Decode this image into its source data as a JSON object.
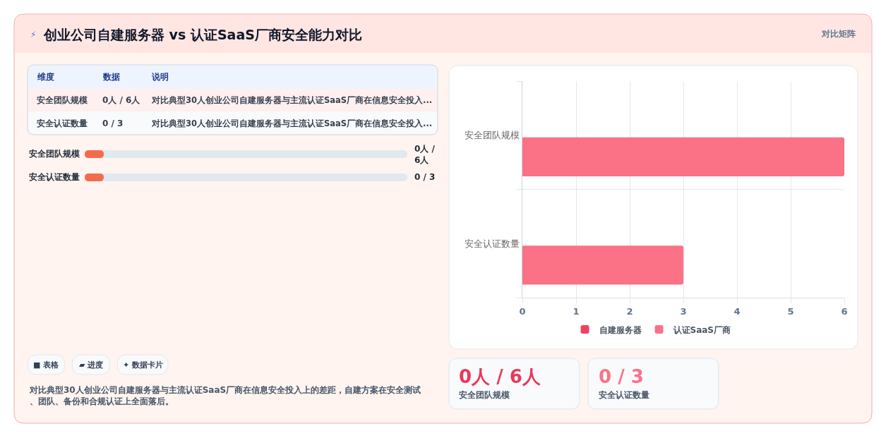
{
  "chart_data": {
    "type": "bar",
    "orientation": "horizontal",
    "title": "创业公司自建服务器 vs 认证SaaS厂商安全能力对比",
    "categories": [
      "安全团队规模",
      "安全认证数量"
    ],
    "series": [
      {
        "name": "自建服务器",
        "color": "#f43f5e",
        "values": [
          0,
          0
        ]
      },
      {
        "name": "认证SaaS厂商",
        "color": "#fb7185",
        "values": [
          6,
          3
        ]
      }
    ],
    "xlim": [
      0,
      6
    ],
    "xticks": [
      0,
      1,
      2,
      3,
      4,
      5,
      6
    ],
    "grid": true,
    "legend": "bottom",
    "annotations": [
      "⚡",
      "对比矩阵",
      "维度",
      "数据",
      "说明",
      "安全团队规模",
      "0人 / 6人",
      "对比典型30人创业公司自建服务器与主流认证SaaS厂商在信息安全投入...",
      "安全认证数量",
      "0 / 3",
      "对比典型30人创业公司自建服务器与主流认证SaaS厂商在信息安全投入...",
      "安全团队规模",
      "0人 / 6人",
      "安全认证数量",
      "0 / 3",
      "■ 表格",
      "▰ 进度",
      "✦ 数据卡片",
      "对比典型30人创业公司自建服务器与主流认证SaaS厂商在信息安全投入上的差距，自建方案在安全测试、团队、备份和合规认证上全面落后。",
      "0人 / 6人",
      "安全团队规模",
      "0 / 3",
      "安全认证数量"
    ]
  }
}
